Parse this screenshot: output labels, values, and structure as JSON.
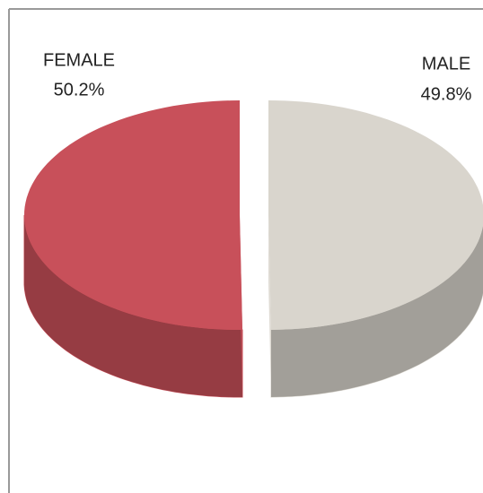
{
  "chart_data": {
    "type": "pie3d",
    "categories": [
      "FEMALE",
      "MALE"
    ],
    "values": [
      50.2,
      49.8
    ],
    "value_labels": [
      "50.2%",
      "49.8%"
    ],
    "colors": [
      "#c8505a",
      "#d9d5cd"
    ]
  }
}
